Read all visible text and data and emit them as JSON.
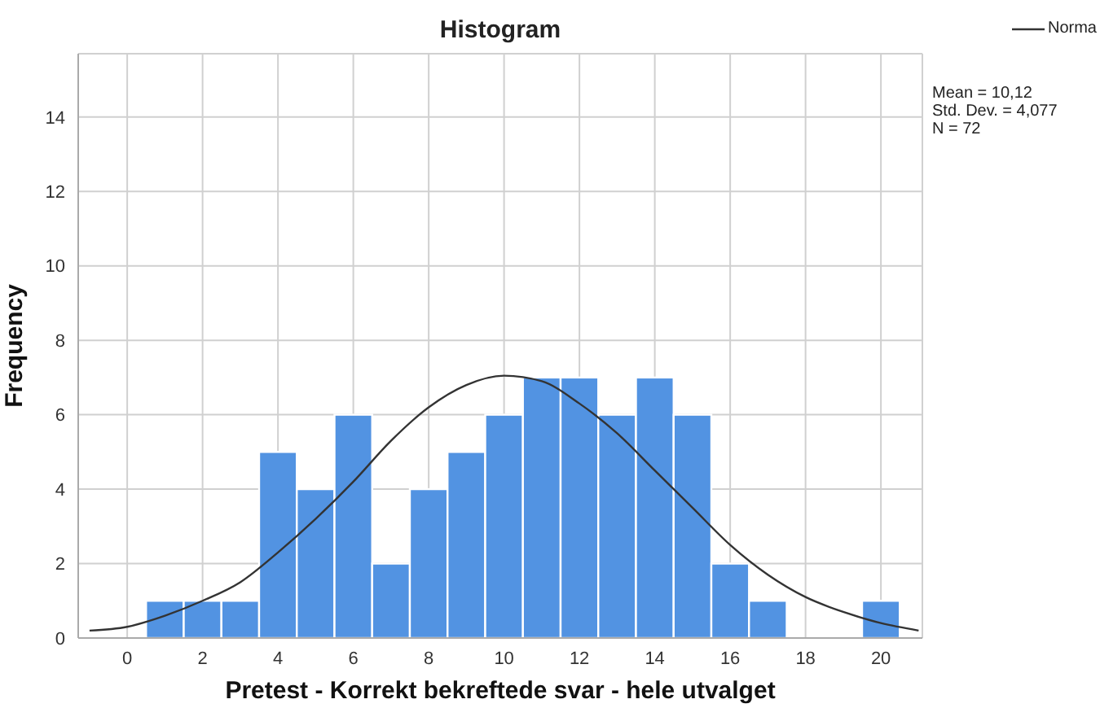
{
  "chart_data": {
    "type": "histogram",
    "title": "Histogram",
    "xlabel": "Pretest - Korrekt bekreftede svar - hele utvalget",
    "ylabel": "Frequency",
    "bins": [
      0.5,
      1.5,
      2.5,
      3.5,
      4.5,
      5.5,
      6.5,
      7.5,
      8.5,
      9.5,
      10.5,
      11.5,
      12.5,
      13.5,
      14.5,
      15.5,
      16.5,
      17.5,
      18.5,
      19.5,
      20.5
    ],
    "values": [
      1,
      1,
      1,
      5,
      4,
      6,
      2,
      4,
      5,
      6,
      7,
      7,
      6,
      7,
      6,
      2,
      1,
      0,
      0,
      1
    ],
    "color": "#5293e2",
    "series": [
      {
        "name": "Norma",
        "type": "line",
        "color": "#333333",
        "x": [
          -1,
          0,
          1,
          2,
          3,
          4,
          5,
          6,
          7,
          8,
          9,
          10,
          11,
          12,
          13,
          14,
          15,
          16,
          17,
          18,
          19,
          20,
          21
        ],
        "values": [
          0.2,
          0.3,
          0.6,
          1.0,
          1.5,
          2.3,
          3.2,
          4.2,
          5.3,
          6.2,
          6.8,
          7.05,
          6.9,
          6.3,
          5.5,
          4.5,
          3.5,
          2.5,
          1.7,
          1.1,
          0.7,
          0.4,
          0.2
        ]
      }
    ],
    "annotations": [
      "Mean = 10,12",
      "Std. Dev. = 4,077",
      "N = 72"
    ],
    "xlim": [
      -1.3,
      21.1
    ],
    "xticks": [
      0,
      2,
      4,
      6,
      8,
      10,
      12,
      14,
      16,
      18,
      20
    ],
    "ylim": [
      0,
      15.7
    ],
    "yticks": [
      0,
      2,
      4,
      6,
      8,
      10,
      12,
      14
    ],
    "grid": true,
    "legend": "top right",
    "marker": "none",
    "line_style": "solid"
  }
}
